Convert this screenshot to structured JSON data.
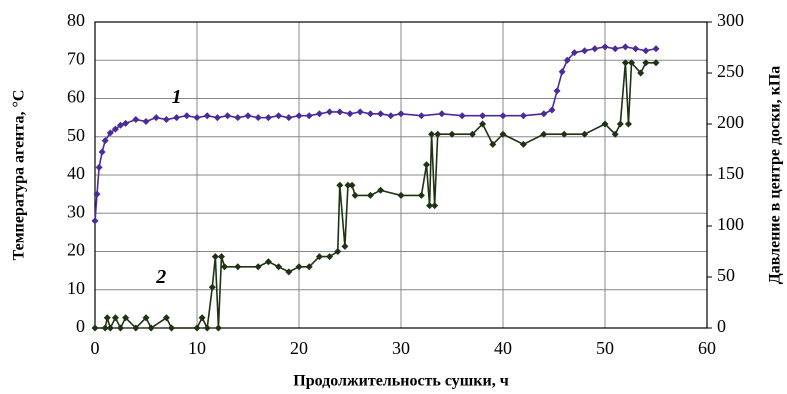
{
  "chart_data": {
    "type": "line",
    "xlabel": "Продолжительность сушки, ч",
    "ylabel": "Температура агента, °С",
    "y2label": "Давление в центре доски, кПа",
    "annotations": [
      {
        "text": "1",
        "x": 8,
        "y": 60
      },
      {
        "text": "2",
        "x": 6.5,
        "y": 13
      }
    ],
    "xlim": [
      0,
      60
    ],
    "xticks": [
      0,
      10,
      20,
      30,
      40,
      50,
      60
    ],
    "ylim": [
      0,
      80
    ],
    "yticks": [
      0,
      10,
      20,
      30,
      40,
      50,
      60,
      70,
      80
    ],
    "y2lim": [
      0,
      300
    ],
    "y2ticks": [
      0,
      50,
      100,
      150,
      200,
      250,
      300
    ],
    "grid": true,
    "series": [
      {
        "color": "#4b2a9a",
        "x": [
          0,
          0.2,
          0.4,
          0.7,
          1,
          1.5,
          2,
          2.5,
          3,
          4,
          5,
          6,
          7,
          8,
          9,
          10,
          11,
          12,
          13,
          14,
          15,
          16,
          17,
          18,
          19,
          20,
          21,
          22,
          23,
          24,
          25,
          26,
          27,
          28,
          29,
          30,
          32,
          34,
          36,
          38,
          40,
          42,
          44,
          44.8,
          45.3,
          45.8,
          46.3,
          47,
          48,
          49,
          50,
          51,
          52,
          53,
          54,
          55
        ],
        "values": [
          28,
          35,
          42,
          46,
          49,
          51,
          52,
          53,
          53.5,
          54.5,
          54,
          55,
          54.5,
          55,
          55.5,
          55,
          55.5,
          55,
          55.5,
          55,
          55.5,
          55,
          55,
          55.5,
          55,
          55.5,
          55.5,
          56,
          56.5,
          56.5,
          56,
          56.5,
          56,
          56,
          55.5,
          56,
          55.5,
          56,
          55.5,
          55.5,
          55.5,
          55.5,
          56,
          57,
          62,
          67,
          70,
          72,
          72.5,
          73,
          73.5,
          73,
          73.5,
          73,
          72.5,
          73
        ]
      },
      {
        "color": "#1f3212",
        "axis": "y2",
        "x": [
          0,
          1,
          1.2,
          1.5,
          2,
          2.5,
          3,
          4,
          5,
          5.5,
          7,
          7.5,
          10,
          10.5,
          11,
          11.5,
          11.8,
          12.1,
          12.4,
          12.7,
          14,
          16,
          17,
          18,
          19,
          20,
          21,
          22,
          23,
          23.8,
          24,
          24.5,
          24.8,
          25.2,
          25.5,
          27,
          28,
          30,
          32,
          32.5,
          32.8,
          33,
          33.3,
          33.6,
          35,
          37,
          38,
          39,
          40,
          42,
          44,
          46,
          48,
          50,
          51,
          51.5,
          52,
          52.3,
          52.6,
          53.5,
          54,
          55
        ],
        "values": [
          0,
          0,
          10,
          0,
          10,
          0,
          10,
          0,
          10,
          0,
          10,
          0,
          0,
          10,
          0,
          40,
          70,
          0,
          70,
          60,
          60,
          60,
          65,
          60,
          55,
          60,
          60,
          70,
          70,
          75,
          140,
          80,
          140,
          140,
          130,
          130,
          135,
          130,
          130,
          160,
          120,
          190,
          120,
          190,
          190,
          190,
          200,
          180,
          190,
          180,
          190,
          190,
          190,
          200,
          190,
          200,
          260,
          200,
          260,
          250,
          260,
          260
        ]
      }
    ]
  }
}
